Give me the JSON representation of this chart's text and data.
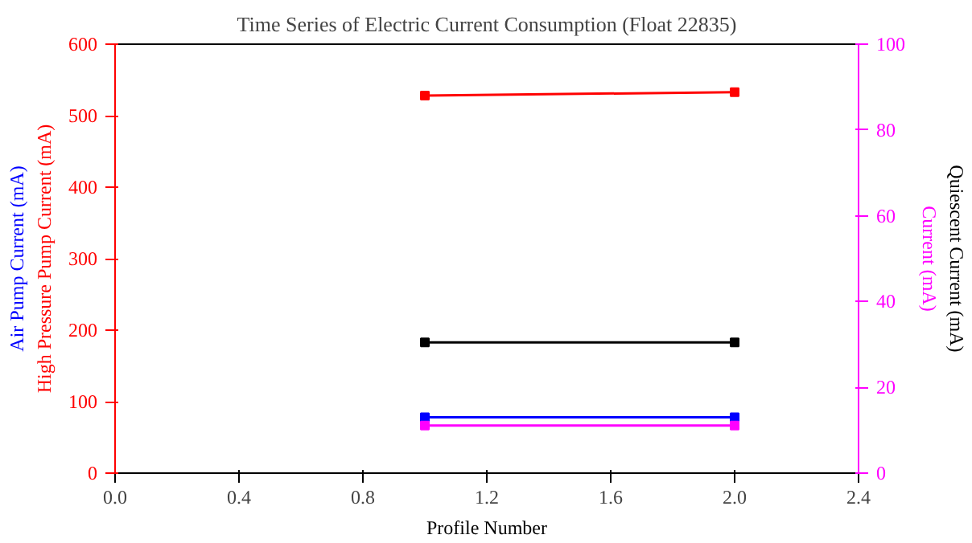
{
  "chart_data": {
    "type": "line",
    "title": "Time Series of Electric Current Consumption (Float 22835)",
    "xlabel": "Profile Number",
    "x": [
      1,
      2
    ],
    "series": [
      {
        "name": "High Pressure Pump Current (mA)",
        "color": "#ff0000",
        "values": [
          528,
          533
        ]
      },
      {
        "name": "Air Pump Current (mA)",
        "color": "#0000ff",
        "values": [
          78,
          78
        ]
      },
      {
        "name": "Current (mA)",
        "color": "#ff00ff",
        "values": [
          11.1,
          11.1
        ],
        "axis": "y2"
      },
      {
        "name": "Quiescent Current (mA)",
        "color": "#000000",
        "values": [
          30.5,
          30.5
        ],
        "axis": "y2"
      }
    ],
    "xlim": [
      0,
      2.4
    ],
    "xticks": [
      {
        "value": 0,
        "label": "0.0"
      },
      0.4,
      0.8,
      1.2,
      1.6,
      {
        "value": 2,
        "label": "2.0"
      },
      2.4
    ],
    "ylim": [
      0,
      600
    ],
    "yticks": [
      0,
      100,
      200,
      300,
      400,
      500,
      600
    ],
    "y2lim": [
      0,
      100
    ],
    "y2ticks": [
      0,
      20,
      40,
      60,
      80,
      100
    ],
    "marker": "square",
    "line_style": "solid",
    "grid": false
  }
}
